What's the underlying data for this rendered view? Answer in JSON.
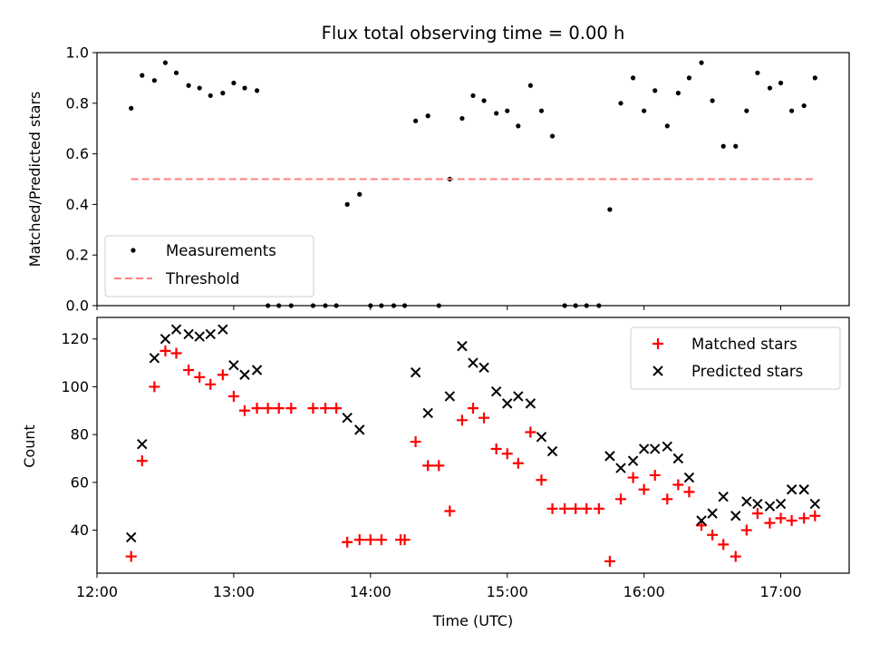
{
  "chart_data": [
    {
      "type": "scatter",
      "title": "Flux total observing time = 0.00 h",
      "xlabel": "",
      "ylabel": "Matched/Predicted stars",
      "x_unit": "hours UTC",
      "xlim": [
        12.0,
        17.5
      ],
      "ylim": [
        0.0,
        1.0
      ],
      "yticks": [
        0.0,
        0.2,
        0.4,
        0.6,
        0.8,
        1.0
      ],
      "ytick_labels": [
        "0.0",
        "0.2",
        "0.4",
        "0.6",
        "0.8",
        "1.0"
      ],
      "legend_position": "lower-left",
      "series": [
        {
          "name": "Measurements",
          "marker": "dot",
          "color": "#000000",
          "x": [
            12.25,
            12.33,
            12.42,
            12.5,
            12.58,
            12.67,
            12.75,
            12.83,
            12.92,
            13.0,
            13.08,
            13.17,
            13.25,
            13.33,
            13.42,
            13.58,
            13.67,
            13.75,
            13.83,
            13.92,
            14.0,
            14.08,
            14.17,
            14.25,
            14.33,
            14.42,
            14.5,
            14.58,
            14.67,
            14.75,
            14.83,
            14.92,
            15.0,
            15.08,
            15.17,
            15.25,
            15.33,
            15.42,
            15.5,
            15.58,
            15.67,
            15.75,
            15.83,
            15.92,
            16.0,
            16.08,
            16.17,
            16.25,
            16.33,
            16.42,
            16.5,
            16.58,
            16.67,
            16.75,
            16.83,
            16.92,
            17.0,
            17.08,
            17.17,
            17.25
          ],
          "y": [
            0.78,
            0.91,
            0.89,
            0.96,
            0.92,
            0.87,
            0.86,
            0.83,
            0.84,
            0.88,
            0.86,
            0.85,
            0.0,
            0.0,
            0.0,
            0.0,
            0.0,
            0.0,
            0.4,
            0.44,
            0.0,
            0.0,
            0.0,
            0.0,
            0.73,
            0.75,
            0.0,
            0.5,
            0.74,
            0.83,
            0.81,
            0.76,
            0.77,
            0.71,
            0.87,
            0.77,
            0.67,
            0.0,
            0.0,
            0.0,
            0.0,
            0.38,
            0.8,
            0.9,
            0.77,
            0.85,
            0.71,
            0.84,
            0.9,
            0.96,
            0.81,
            0.63,
            0.63,
            0.77,
            0.92,
            0.86,
            0.88,
            0.77,
            0.79,
            0.9
          ]
        },
        {
          "name": "Threshold",
          "marker": "dashed-line",
          "color": "#ff7f7f",
          "x": [
            12.25,
            17.25
          ],
          "y": [
            0.5,
            0.5
          ]
        }
      ]
    },
    {
      "type": "scatter",
      "title": "",
      "xlabel": "Time (UTC)",
      "ylabel": "Count",
      "x_unit": "hours UTC",
      "xlim": [
        12.0,
        17.5
      ],
      "ylim": [
        22,
        129
      ],
      "xticks": [
        12,
        13,
        14,
        15,
        16,
        17
      ],
      "xtick_labels": [
        "12:00",
        "13:00",
        "14:00",
        "15:00",
        "16:00",
        "17:00"
      ],
      "yticks": [
        40,
        60,
        80,
        100,
        120
      ],
      "ytick_labels": [
        "40",
        "60",
        "80",
        "100",
        "120"
      ],
      "legend_position": "upper-right",
      "series": [
        {
          "name": "Matched stars",
          "marker": "plus",
          "color": "#ff0000",
          "x": [
            12.25,
            12.33,
            12.42,
            12.5,
            12.58,
            12.67,
            12.75,
            12.83,
            12.92,
            13.0,
            13.08,
            13.17,
            13.25,
            13.33,
            13.42,
            13.58,
            13.67,
            13.75,
            13.83,
            13.92,
            14.0,
            14.08,
            14.22,
            14.25,
            14.33,
            14.42,
            14.5,
            14.58,
            14.67,
            14.75,
            14.83,
            14.92,
            15.0,
            15.08,
            15.17,
            15.25,
            15.33,
            15.42,
            15.5,
            15.58,
            15.67,
            15.75,
            15.83,
            15.92,
            16.0,
            16.08,
            16.17,
            16.25,
            16.33,
            16.42,
            16.5,
            16.58,
            16.67,
            16.75,
            16.83,
            16.92,
            17.0,
            17.08,
            17.17,
            17.25
          ],
          "y": [
            29,
            69,
            100,
            115,
            114,
            107,
            104,
            101,
            105,
            96,
            90,
            91,
            91,
            91,
            91,
            91,
            91,
            91,
            35,
            36,
            36,
            36,
            36,
            36,
            77,
            67,
            67,
            48,
            86,
            91,
            87,
            74,
            72,
            68,
            81,
            61,
            49,
            49,
            49,
            49,
            49,
            27,
            53,
            62,
            57,
            63,
            53,
            59,
            56,
            42,
            38,
            34,
            29,
            40,
            47,
            43,
            45,
            44,
            45,
            46
          ]
        },
        {
          "name": "Predicted stars",
          "marker": "x",
          "color": "#000000",
          "x": [
            12.25,
            12.33,
            12.42,
            12.5,
            12.58,
            12.67,
            12.75,
            12.83,
            12.92,
            13.0,
            13.08,
            13.17,
            13.83,
            13.92,
            14.33,
            14.42,
            14.58,
            14.67,
            14.75,
            14.83,
            14.92,
            15.0,
            15.08,
            15.17,
            15.25,
            15.33,
            15.75,
            15.83,
            15.92,
            16.0,
            16.08,
            16.17,
            16.25,
            16.33,
            16.42,
            16.5,
            16.58,
            16.67,
            16.75,
            16.83,
            16.92,
            17.0,
            17.08,
            17.17,
            17.25
          ],
          "y": [
            37,
            76,
            112,
            120,
            124,
            122,
            121,
            122,
            124,
            109,
            105,
            107,
            87,
            82,
            106,
            89,
            96,
            117,
            110,
            108,
            98,
            93,
            96,
            93,
            79,
            73,
            71,
            66,
            69,
            74,
            74,
            75,
            70,
            62,
            44,
            47,
            54,
            46,
            52,
            51,
            50,
            51,
            57,
            57,
            51
          ]
        }
      ]
    }
  ]
}
